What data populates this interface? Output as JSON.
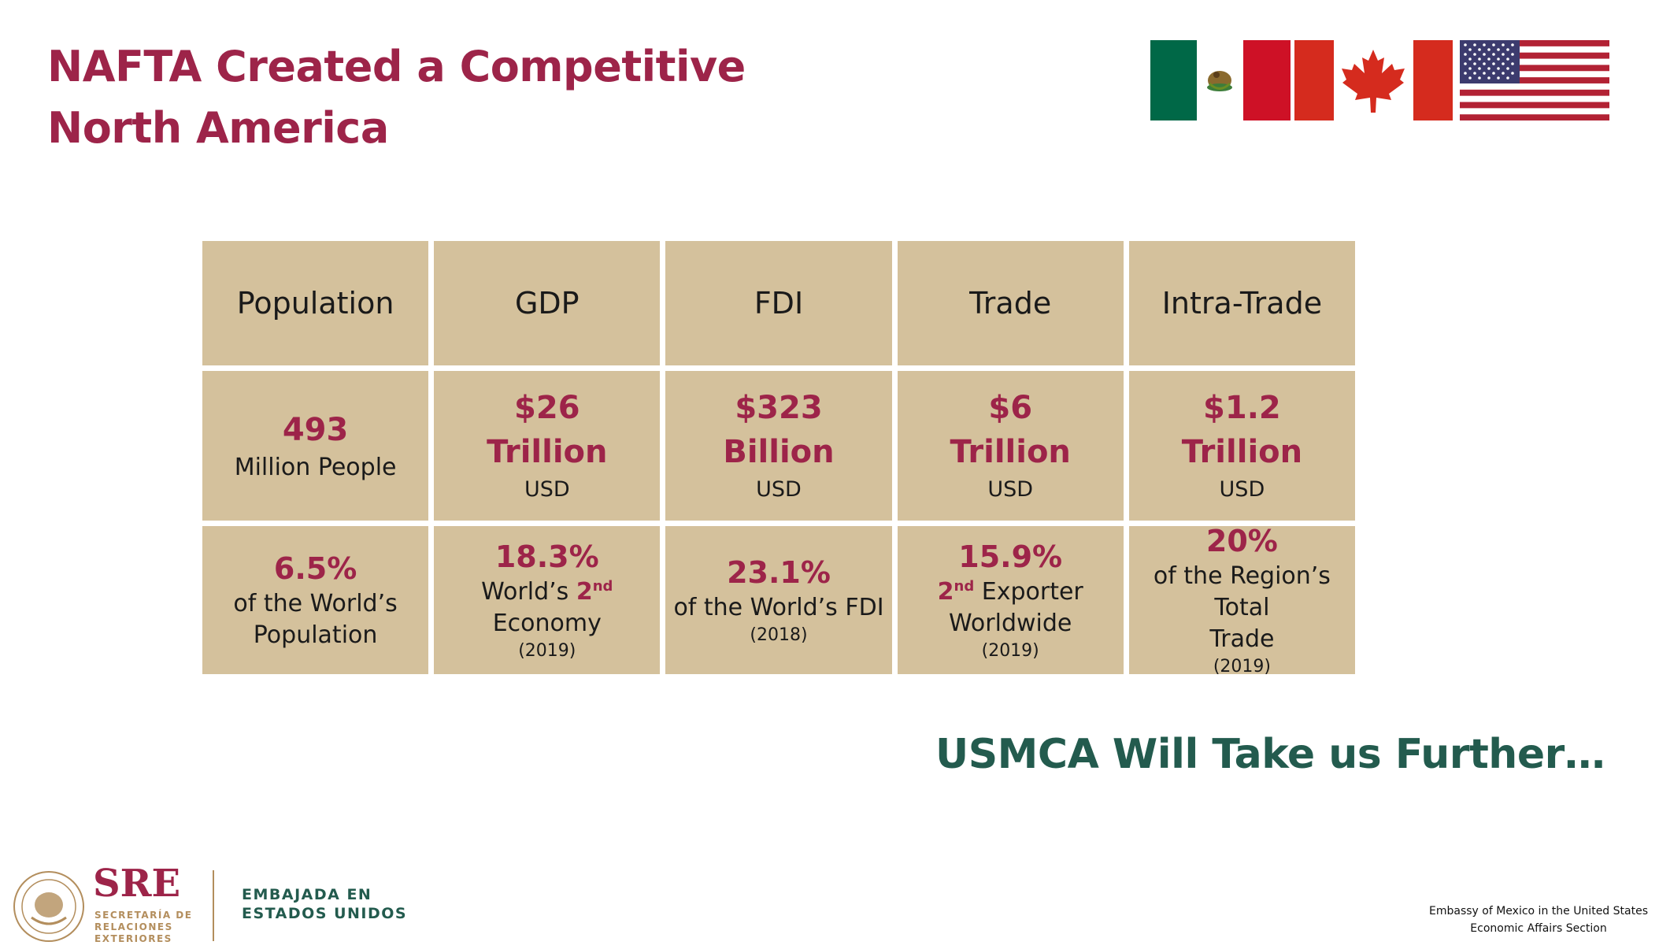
{
  "title": {
    "line1": "NAFTA Created a Competitive",
    "line2": "North America"
  },
  "flags": {
    "mexico": "mexico-flag-icon",
    "canada": "canada-flag-icon",
    "usa": "usa-flag-icon"
  },
  "table": {
    "headers": [
      "Population",
      "GDP",
      "FDI",
      "Trade",
      "Intra-Trade"
    ],
    "values": [
      {
        "number": "493",
        "unit": "Million People",
        "currency": ""
      },
      {
        "number": "$26",
        "unit": "Trillion",
        "currency": "USD"
      },
      {
        "number": "$323",
        "unit": "Billion",
        "currency": "USD"
      },
      {
        "number": "$6",
        "unit": "Trillion",
        "currency": "USD"
      },
      {
        "number": "$1.2",
        "unit": "Trillion",
        "currency": "USD"
      }
    ],
    "shares": [
      {
        "pct": "6.5%",
        "line1": "of the World’s",
        "line2": "Population",
        "year": ""
      },
      {
        "pct": "18.3%",
        "line1_pre": "World’s ",
        "ordinal": "2",
        "sup": "nd",
        "line2": "Economy",
        "year": "(2019)"
      },
      {
        "pct": "23.1%",
        "line1": "of the World’s FDI",
        "year": "(2018)"
      },
      {
        "pct": "15.9%",
        "ordinal": "2",
        "sup": "nd",
        "line1_post": " Exporter",
        "line2": "Worldwide",
        "year": "(2019)"
      },
      {
        "pct": "20%",
        "line1": "of the Region’s Total",
        "line2": "Trade",
        "year": "(2019)"
      }
    ]
  },
  "tagline": "USMCA Will Take us Further…",
  "footer": {
    "logo": "SRE",
    "logo_sub": [
      "SECRETARÍA DE",
      "RELACIONES",
      "EXTERIORES"
    ],
    "embajada": [
      "EMBAJADA EN",
      "ESTADOS UNIDOS"
    ],
    "embassy": [
      "Embassy of Mexico in the United States",
      "Economic Affairs Section"
    ]
  },
  "colors": {
    "maroon": "#9d2449",
    "green": "#235b4e",
    "cell": "#d4c19c",
    "gold": "#b38e5d"
  }
}
